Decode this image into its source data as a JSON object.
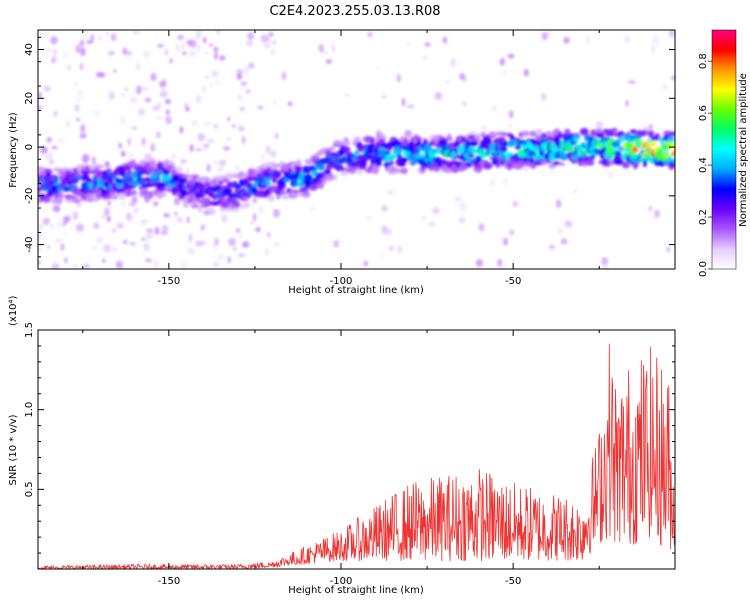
{
  "title": "C2E4.2023.255.03.13.R08",
  "chart_data": [
    {
      "type": "heatmap",
      "xlabel": "Height of straight line (km)",
      "ylabel": "Frequency (Hz)",
      "xlim": [
        -188,
        -3
      ],
      "ylim": [
        -50,
        48
      ],
      "xticks": [
        -150,
        -100,
        -50
      ],
      "yticks": [
        -40,
        -20,
        0,
        20,
        40
      ],
      "colorbar": {
        "label": "Normalized spectral amplitude",
        "range": [
          0,
          0.92
        ],
        "ticks": [
          0.0,
          0.2,
          0.4,
          0.6,
          0.8
        ],
        "colormap": [
          "#ffffff",
          "#e6ccff",
          "#aa55ff",
          "#6a00ff",
          "#0000ff",
          "#00aaff",
          "#00ffff",
          "#00ff66",
          "#66ff00",
          "#ffff00",
          "#ff9900",
          "#ff0000",
          "#ff0080"
        ]
      },
      "ridge": {
        "height_km": [
          -188,
          -175,
          -160,
          -150,
          -145,
          -138,
          -130,
          -120,
          -110,
          -100,
          -90,
          -80,
          -70,
          -60,
          -50,
          -40,
          -30,
          -20,
          -10,
          -3
        ],
        "frequency_hz": [
          -16,
          -15,
          -13,
          -13,
          -17,
          -20,
          -18,
          -14,
          -13,
          -4,
          -3,
          -3,
          -3,
          -2,
          -1,
          -1,
          0,
          0,
          -1,
          -1
        ],
        "peak_amplitude": [
          0.35,
          0.38,
          0.4,
          0.4,
          0.3,
          0.3,
          0.35,
          0.38,
          0.4,
          0.35,
          0.42,
          0.45,
          0.45,
          0.45,
          0.48,
          0.5,
          0.55,
          0.6,
          0.8,
          0.75
        ]
      }
    },
    {
      "type": "line",
      "xlabel": "Height of straight line (km)",
      "ylabel": "SNR (10 * v/v)",
      "yscale_label": "(x10⁴)",
      "xlim": [
        -188,
        -3
      ],
      "ylim": [
        0,
        1.5
      ],
      "xticks": [
        -150,
        -100,
        -50
      ],
      "yticks": [
        0.5,
        1.0,
        1.5
      ],
      "color": "#ee3333",
      "envelope": {
        "height_km": [
          -188,
          -160,
          -130,
          -120,
          -110,
          -100,
          -90,
          -80,
          -70,
          -60,
          -50,
          -40,
          -30,
          -25,
          -22,
          -20,
          -15,
          -10,
          -5,
          -3
        ],
        "snr_upper": [
          0.02,
          0.03,
          0.03,
          0.05,
          0.15,
          0.25,
          0.4,
          0.55,
          0.6,
          0.65,
          0.55,
          0.5,
          0.45,
          0.9,
          1.5,
          1.2,
          1.35,
          1.4,
          1.3,
          0.45
        ],
        "snr_lower": [
          0.0,
          0.0,
          0.0,
          0.01,
          0.03,
          0.05,
          0.05,
          0.05,
          0.05,
          0.05,
          0.05,
          0.05,
          0.05,
          0.15,
          0.2,
          0.15,
          0.15,
          0.2,
          0.1,
          0.15
        ]
      }
    }
  ]
}
